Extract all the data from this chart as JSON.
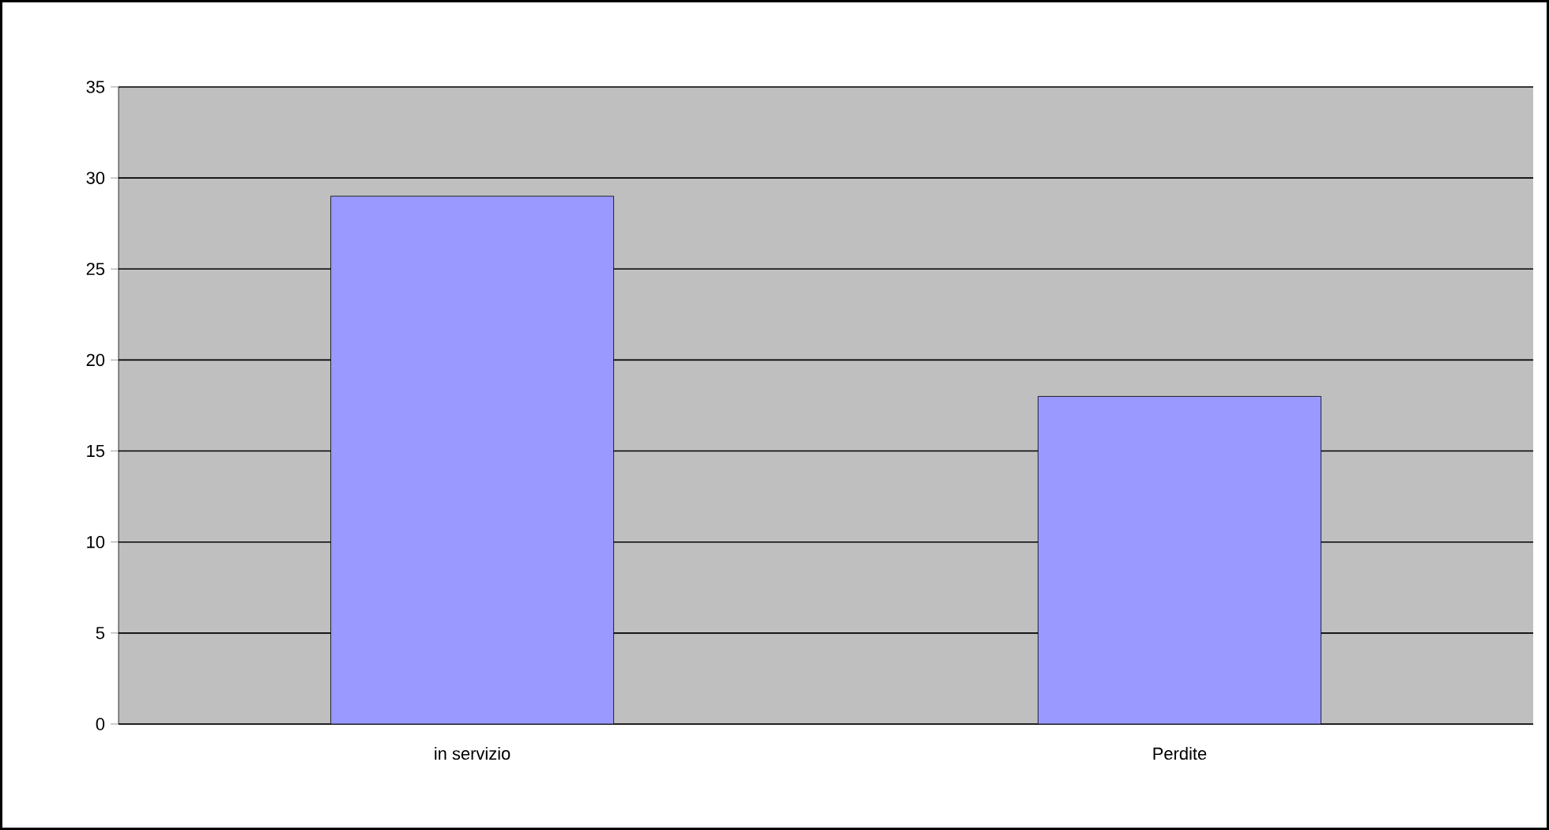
{
  "chart_data": {
    "type": "bar",
    "categories": [
      "in servizio",
      "Perdite"
    ],
    "values": [
      29,
      18
    ],
    "color": "#9999ff",
    "ylim": [
      0,
      35
    ],
    "yticks": [
      0,
      5,
      10,
      15,
      20,
      25,
      30,
      35
    ],
    "grid": "y"
  }
}
